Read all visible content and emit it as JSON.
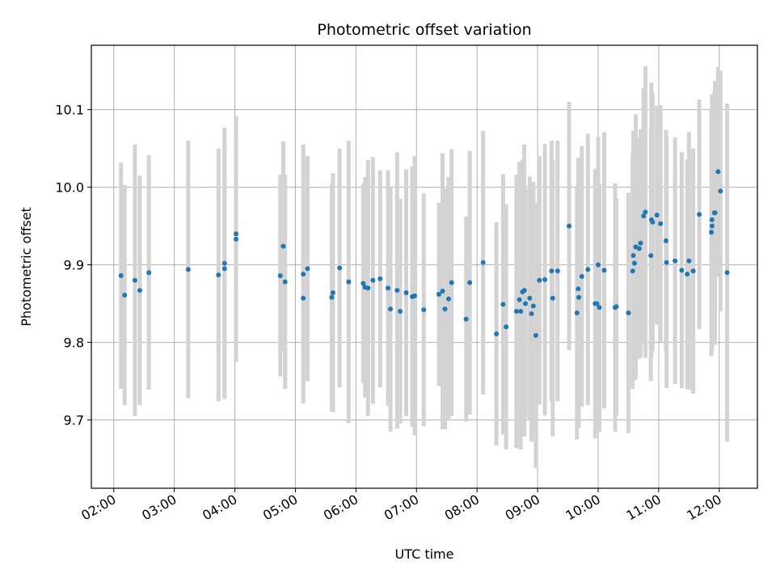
{
  "chart_data": {
    "type": "scatter",
    "title": "Photometric offset variation",
    "xlabel": "UTC time",
    "ylabel": "Photometric offset",
    "x_unit": "UTC hours",
    "xlim": [
      1.63,
      12.63
    ],
    "ylim": [
      9.612,
      10.183
    ],
    "grid": true,
    "x_ticks": [
      {
        "value": 2,
        "label": "02:00"
      },
      {
        "value": 3,
        "label": "03:00"
      },
      {
        "value": 4,
        "label": "04:00"
      },
      {
        "value": 5,
        "label": "05:00"
      },
      {
        "value": 6,
        "label": "06:00"
      },
      {
        "value": 7,
        "label": "07:00"
      },
      {
        "value": 8,
        "label": "08:00"
      },
      {
        "value": 9,
        "label": "09:00"
      },
      {
        "value": 10,
        "label": "10:00"
      },
      {
        "value": 11,
        "label": "11:00"
      },
      {
        "value": 12,
        "label": "12:00"
      }
    ],
    "y_ticks": [
      {
        "value": 9.7,
        "label": "9.7"
      },
      {
        "value": 9.8,
        "label": "9.8"
      },
      {
        "value": 9.9,
        "label": "9.9"
      },
      {
        "value": 10.0,
        "label": "10.0"
      },
      {
        "value": 10.1,
        "label": "10.1"
      }
    ],
    "colors": {
      "points": "#1f77b4",
      "errorbars": "#d3d3d3",
      "grid": "#b0b0b0"
    },
    "points": [
      [
        2.12,
        9.886,
        0.146
      ],
      [
        2.18,
        9.861,
        0.142
      ],
      [
        2.35,
        9.88,
        0.175
      ],
      [
        2.43,
        9.867,
        0.148
      ],
      [
        2.58,
        9.89,
        0.151
      ],
      [
        3.23,
        9.894,
        0.166
      ],
      [
        3.73,
        9.887,
        0.163
      ],
      [
        3.83,
        9.895,
        0.165
      ],
      [
        3.83,
        9.902,
        0.175
      ],
      [
        4.02,
        9.933,
        0.158
      ],
      [
        4.02,
        9.94,
        0.152
      ],
      [
        4.75,
        9.886,
        0.13
      ],
      [
        4.8,
        9.924,
        0.135
      ],
      [
        4.83,
        9.878,
        0.138
      ],
      [
        5.13,
        9.857,
        0.135
      ],
      [
        5.13,
        9.888,
        0.167
      ],
      [
        5.2,
        9.895,
        0.145
      ],
      [
        5.6,
        9.858,
        0.147
      ],
      [
        5.62,
        9.864,
        0.154
      ],
      [
        5.73,
        9.896,
        0.154
      ],
      [
        5.88,
        9.878,
        0.182
      ],
      [
        6.12,
        9.876,
        0.128
      ],
      [
        6.15,
        9.871,
        0.142
      ],
      [
        6.2,
        9.87,
        0.165
      ],
      [
        6.28,
        9.88,
        0.159
      ],
      [
        6.4,
        9.882,
        0.14
      ],
      [
        6.53,
        9.87,
        0.152
      ],
      [
        6.57,
        9.843,
        0.158
      ],
      [
        6.68,
        9.867,
        0.178
      ],
      [
        6.73,
        9.84,
        0.145
      ],
      [
        6.83,
        9.864,
        0.159
      ],
      [
        6.93,
        9.859,
        0.168
      ],
      [
        6.97,
        9.86,
        0.18
      ],
      [
        7.12,
        9.842,
        0.15
      ],
      [
        7.37,
        9.862,
        0.118
      ],
      [
        7.43,
        9.866,
        0.178
      ],
      [
        7.47,
        9.843,
        0.155
      ],
      [
        7.53,
        9.856,
        0.157
      ],
      [
        7.58,
        9.877,
        0.172
      ],
      [
        7.82,
        9.83,
        0.132
      ],
      [
        7.88,
        9.877,
        0.17
      ],
      [
        8.1,
        9.903,
        0.17
      ],
      [
        8.32,
        9.811,
        0.144
      ],
      [
        8.43,
        9.849,
        0.168
      ],
      [
        8.48,
        9.82,
        0.158
      ],
      [
        8.65,
        9.84,
        0.176
      ],
      [
        8.7,
        9.855,
        0.178
      ],
      [
        8.72,
        9.84,
        0.178
      ],
      [
        8.75,
        9.865,
        0.171
      ],
      [
        8.78,
        9.867,
        0.188
      ],
      [
        8.8,
        9.85,
        0.148
      ],
      [
        8.87,
        9.857,
        0.157
      ],
      [
        8.9,
        9.837,
        0.165
      ],
      [
        8.93,
        9.847,
        0.16
      ],
      [
        8.97,
        9.809,
        0.171
      ],
      [
        9.03,
        9.88,
        0.16
      ],
      [
        9.12,
        9.881,
        0.175
      ],
      [
        9.23,
        9.892,
        0.168
      ],
      [
        9.25,
        9.857,
        0.178
      ],
      [
        9.33,
        9.892,
        0.168
      ],
      [
        9.52,
        9.95,
        0.16
      ],
      [
        9.65,
        9.838,
        0.163
      ],
      [
        9.67,
        9.869,
        0.169
      ],
      [
        9.68,
        9.858,
        0.168
      ],
      [
        9.73,
        9.885,
        0.168
      ],
      [
        9.83,
        9.894,
        0.175
      ],
      [
        9.95,
        9.85,
        0.174
      ],
      [
        9.98,
        9.85,
        0.165
      ],
      [
        10.0,
        9.9,
        0.165
      ],
      [
        10.02,
        9.845,
        0.16
      ],
      [
        10.1,
        9.893,
        0.178
      ],
      [
        10.28,
        9.845,
        0.16
      ],
      [
        10.3,
        9.846,
        0.14
      ],
      [
        10.5,
        9.838,
        0.155
      ],
      [
        10.57,
        9.892,
        0.152
      ],
      [
        10.58,
        9.912,
        0.161
      ],
      [
        10.6,
        9.902,
        0.15
      ],
      [
        10.62,
        9.923,
        0.171
      ],
      [
        10.68,
        9.921,
        0.142
      ],
      [
        10.7,
        9.928,
        0.147
      ],
      [
        10.75,
        9.963,
        0.165
      ],
      [
        10.78,
        9.968,
        0.188
      ],
      [
        10.87,
        9.912,
        0.162
      ],
      [
        10.88,
        9.958,
        0.177
      ],
      [
        10.9,
        9.955,
        0.166
      ],
      [
        10.97,
        9.964,
        0.141
      ],
      [
        11.03,
        9.953,
        0.153
      ],
      [
        11.12,
        9.931,
        0.143
      ],
      [
        11.13,
        9.903,
        0.162
      ],
      [
        11.27,
        9.905,
        0.159
      ],
      [
        11.38,
        9.893,
        0.152
      ],
      [
        11.47,
        9.888,
        0.148
      ],
      [
        11.5,
        9.905,
        0.166
      ],
      [
        11.57,
        9.892,
        0.158
      ],
      [
        11.67,
        9.965,
        0.148
      ],
      [
        11.87,
        9.942,
        0.16
      ],
      [
        11.88,
        9.958,
        0.162
      ],
      [
        11.88,
        9.95,
        0.16
      ],
      [
        11.92,
        9.967,
        0.157
      ],
      [
        11.93,
        9.967,
        0.17
      ],
      [
        11.98,
        10.02,
        0.135
      ],
      [
        12.02,
        9.995,
        0.155
      ],
      [
        12.13,
        9.89,
        0.218
      ]
    ]
  }
}
